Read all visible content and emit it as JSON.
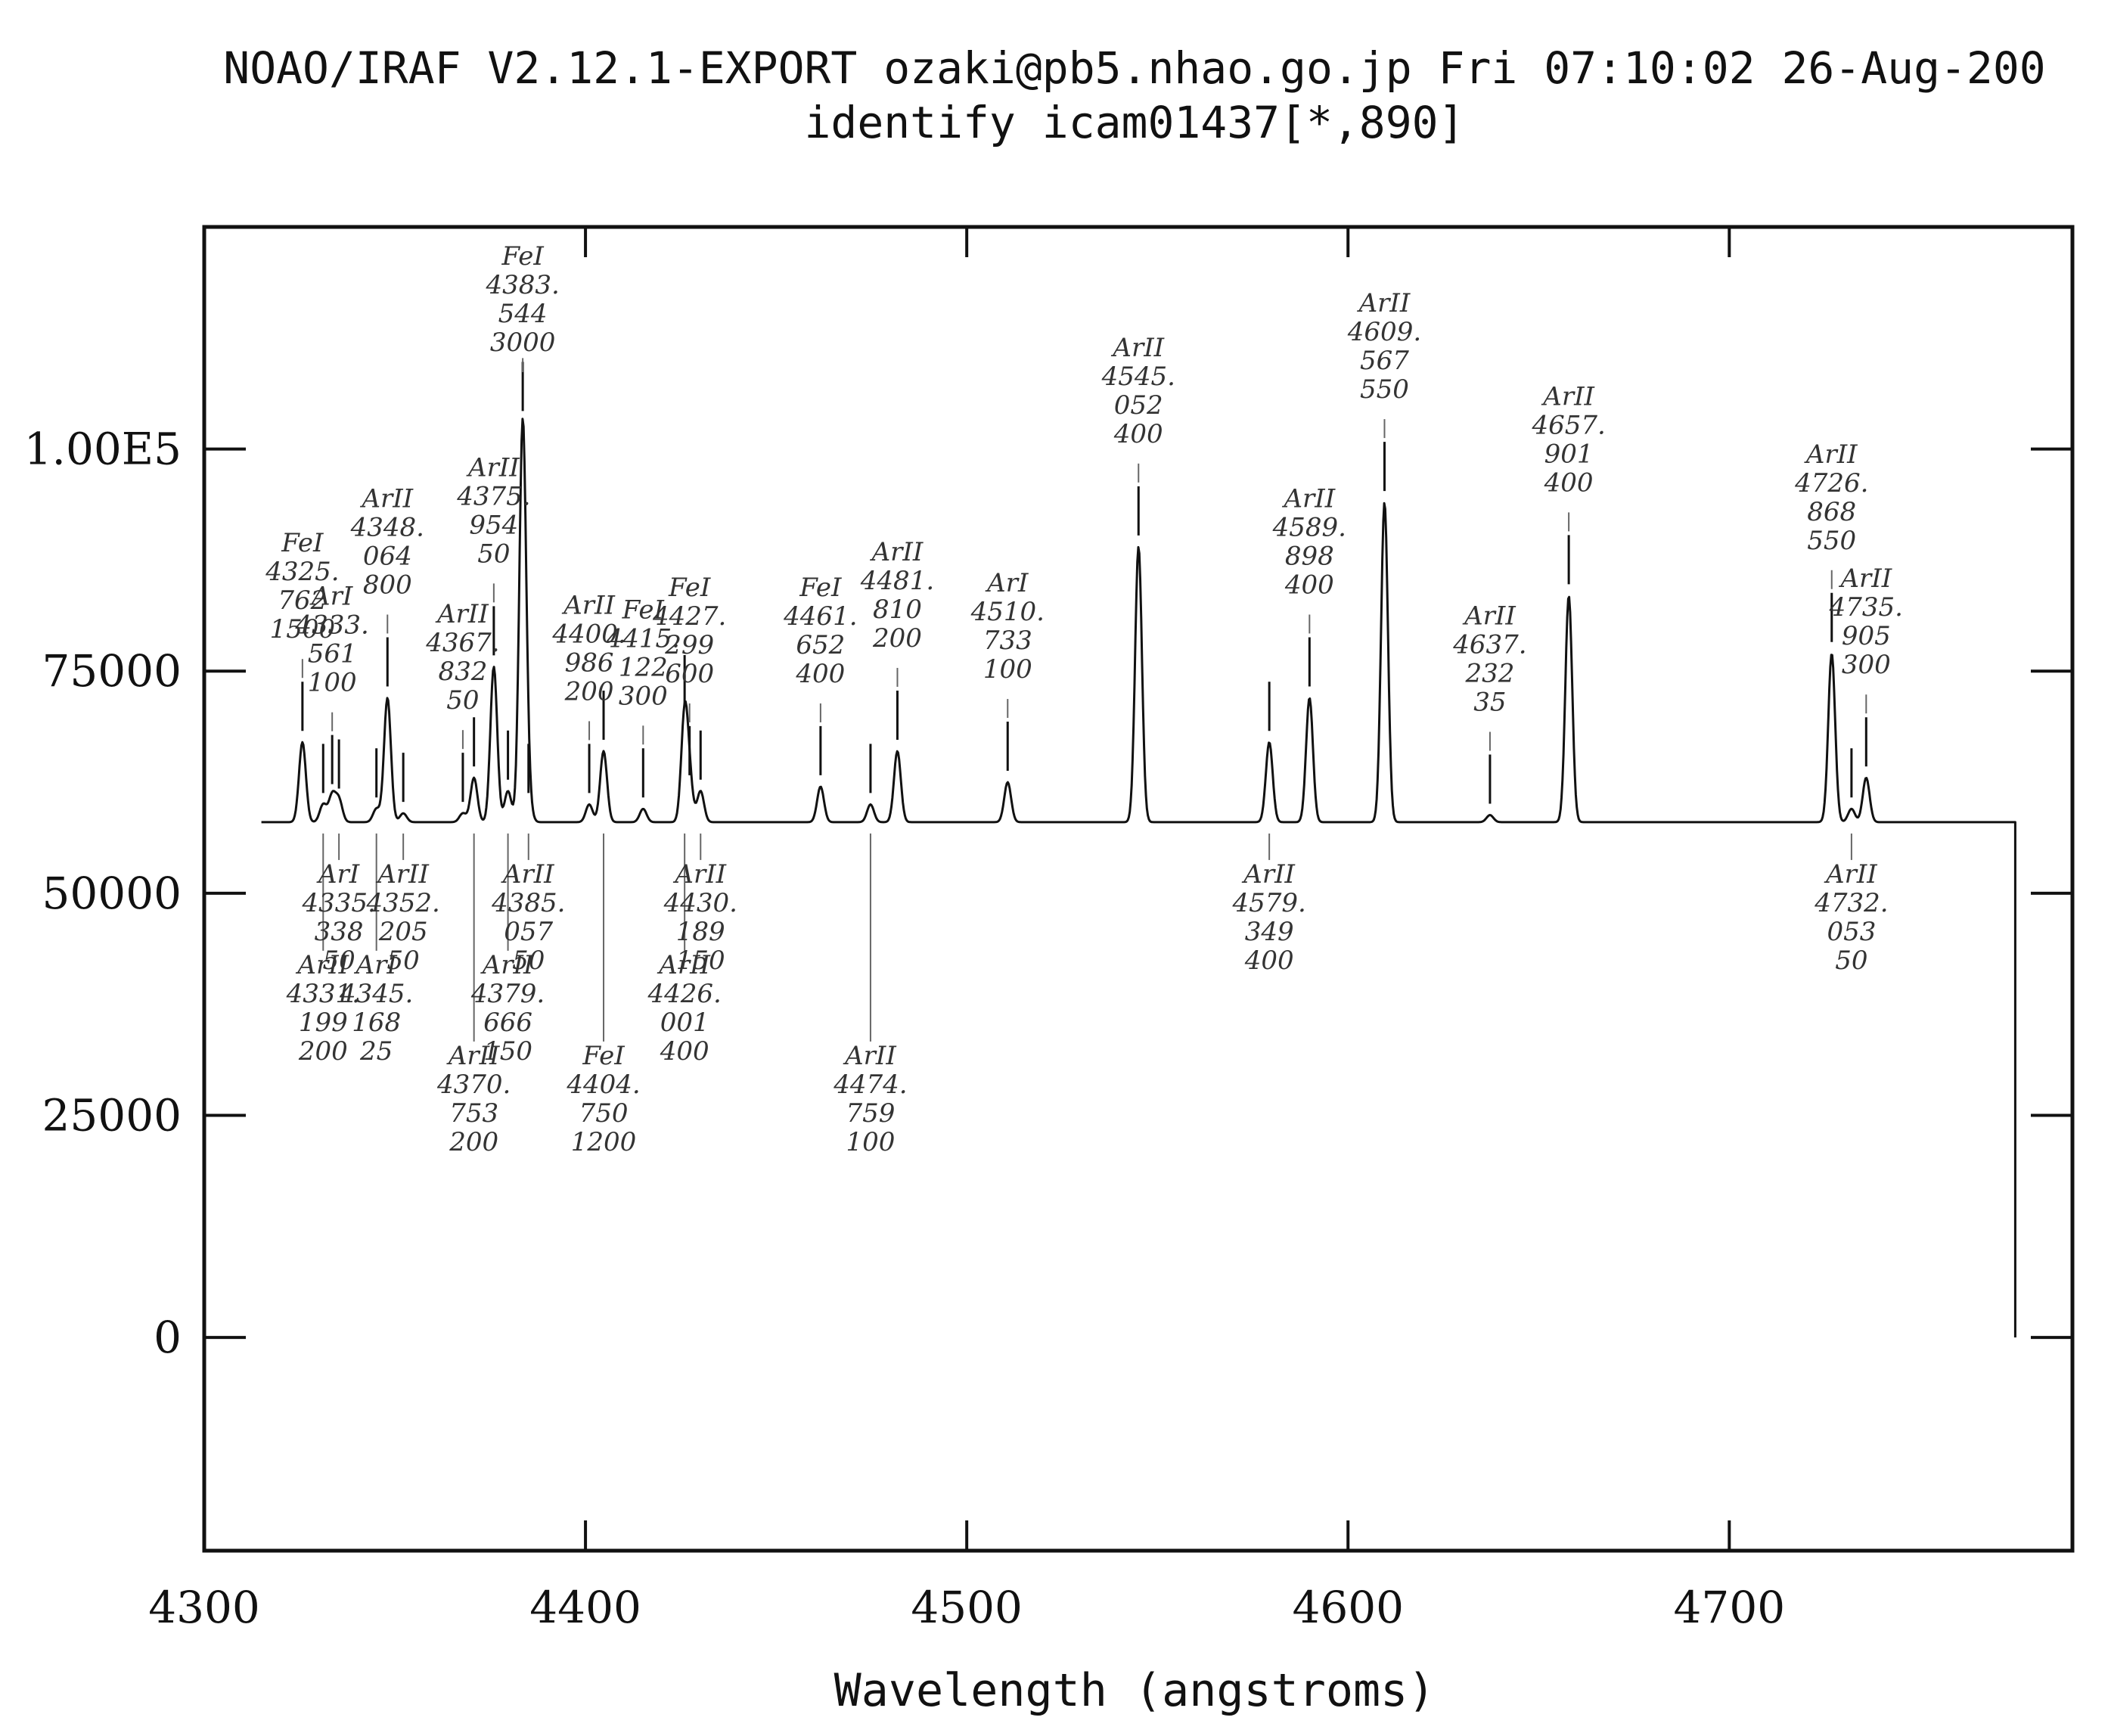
{
  "chart_data": {
    "type": "line",
    "title": "NOAO/IRAF V2.12.1-EXPORT ozaki@pb5.nhao.go.jp Fri 07:10:02 26-Aug-200",
    "subtitle": "identify icam01437[*,890]",
    "xlabel": "Wavelength (angstroms)",
    "ylabel": "",
    "xlim": [
      4300,
      4790
    ],
    "ylim": [
      -24000,
      125000
    ],
    "x_ticks": [
      4300,
      4400,
      4500,
      4600,
      4700
    ],
    "y_ticks": [
      0,
      25000,
      50000,
      75000,
      100000
    ],
    "y_tick_labels": [
      "0",
      "25000",
      "50000",
      "75000",
      "1.00E5"
    ],
    "grid": false,
    "baseline": 58000,
    "x_range": [
      4315,
      4775
    ],
    "lines": [
      {
        "x": 4325.762,
        "peak": 67000,
        "label": [
          "FeI",
          "4325.",
          "762",
          "1500"
        ],
        "side": "top"
      },
      {
        "x": 4331.199,
        "peak": 60000,
        "label": [
          "ArII",
          "4331.",
          "199",
          "200"
        ],
        "side": "bottom"
      },
      {
        "x": 4333.561,
        "peak": 61000,
        "label": [
          "ArI",
          "4333.",
          "561",
          "100"
        ],
        "side": "top"
      },
      {
        "x": 4335.338,
        "peak": 60500,
        "label": [
          "ArI",
          "4335.",
          "338",
          "50"
        ],
        "side": "bottom"
      },
      {
        "x": 4345.168,
        "peak": 59500,
        "label": [
          "ArI",
          "4345.",
          "168",
          "25"
        ],
        "side": "bottom"
      },
      {
        "x": 4348.064,
        "peak": 72000,
        "label": [
          "ArII",
          "4348.",
          "064",
          "800"
        ],
        "side": "top"
      },
      {
        "x": 4352.205,
        "peak": 59000,
        "label": [
          "ArII",
          "4352.",
          "205",
          "50"
        ],
        "side": "bottom"
      },
      {
        "x": 4367.832,
        "peak": 59000,
        "label": [
          "ArII",
          "4367.",
          "832",
          "50"
        ],
        "side": "top"
      },
      {
        "x": 4370.753,
        "peak": 63000,
        "label": [
          "ArII",
          "4370.",
          "753",
          "200"
        ],
        "side": "bottom"
      },
      {
        "x": 4375.954,
        "peak": 75500,
        "label": [
          "ArII",
          "4375.",
          "954",
          "50"
        ],
        "side": "top"
      },
      {
        "x": 4379.666,
        "peak": 61500,
        "label": [
          "ArII",
          "4379.",
          "666",
          "150"
        ],
        "side": "bottom"
      },
      {
        "x": 4383.544,
        "peak": 103000,
        "label": [
          "FeI",
          "4383.",
          "544",
          "3000"
        ],
        "side": "top"
      },
      {
        "x": 4385.057,
        "peak": 60000,
        "label": [
          "ArII",
          "4385.",
          "057",
          "50"
        ],
        "side": "bottom"
      },
      {
        "x": 4400.986,
        "peak": 60000,
        "label": [
          "ArII",
          "4400.",
          "986",
          "200"
        ],
        "side": "top"
      },
      {
        "x": 4404.75,
        "peak": 66000,
        "label": [
          "FeI",
          "4404.",
          "750",
          "1200"
        ],
        "side": "bottom"
      },
      {
        "x": 4415.122,
        "peak": 59500,
        "label": [
          "FeI",
          "4415.",
          "122",
          "300"
        ],
        "side": "top"
      },
      {
        "x": 4426.001,
        "peak": 70000,
        "label": [
          "ArII",
          "4426.",
          "001",
          "400"
        ],
        "side": "bottom"
      },
      {
        "x": 4427.299,
        "peak": 62000,
        "label": [
          "FeI",
          "4427.",
          "299",
          "600"
        ],
        "side": "top"
      },
      {
        "x": 4430.189,
        "peak": 61500,
        "label": [
          "ArII",
          "4430.",
          "189",
          "150"
        ],
        "side": "bottom"
      },
      {
        "x": 4461.652,
        "peak": 62000,
        "label": [
          "FeI",
          "4461.",
          "652",
          "400"
        ],
        "side": "top"
      },
      {
        "x": 4474.759,
        "peak": 60000,
        "label": [
          "ArII",
          "4474.",
          "759",
          "100"
        ],
        "side": "bottom"
      },
      {
        "x": 4481.81,
        "peak": 66000,
        "label": [
          "ArII",
          "4481.",
          "810",
          "200"
        ],
        "side": "top"
      },
      {
        "x": 4510.733,
        "peak": 62500,
        "label": [
          "ArI",
          "4510.",
          "733",
          "100"
        ],
        "side": "top"
      },
      {
        "x": 4545.052,
        "peak": 89000,
        "label": [
          "ArII",
          "4545.",
          "052",
          "400"
        ],
        "side": "top"
      },
      {
        "x": 4579.349,
        "peak": 67000,
        "label": [
          "ArII",
          "4579.",
          "349",
          "400"
        ],
        "side": "bottom"
      },
      {
        "x": 4589.898,
        "peak": 72000,
        "label": [
          "ArII",
          "4589.",
          "898",
          "400"
        ],
        "side": "top"
      },
      {
        "x": 4609.567,
        "peak": 94000,
        "label": [
          "ArII",
          "4609.",
          "567",
          "550"
        ],
        "side": "top"
      },
      {
        "x": 4637.232,
        "peak": 58800,
        "label": [
          "ArII",
          "4637.",
          "232",
          "35"
        ],
        "side": "top"
      },
      {
        "x": 4657.901,
        "peak": 83500,
        "label": [
          "ArII",
          "4657.",
          "901",
          "400"
        ],
        "side": "top"
      },
      {
        "x": 4726.868,
        "peak": 77000,
        "label": [
          "ArII",
          "4726.",
          "868",
          "550"
        ],
        "side": "top"
      },
      {
        "x": 4732.053,
        "peak": 59500,
        "label": [
          "ArII",
          "4732.",
          "053",
          "50"
        ],
        "side": "bottom"
      },
      {
        "x": 4735.905,
        "peak": 63000,
        "label": [
          "ArII",
          "4735.",
          "905",
          "300"
        ],
        "side": "top"
      }
    ]
  }
}
